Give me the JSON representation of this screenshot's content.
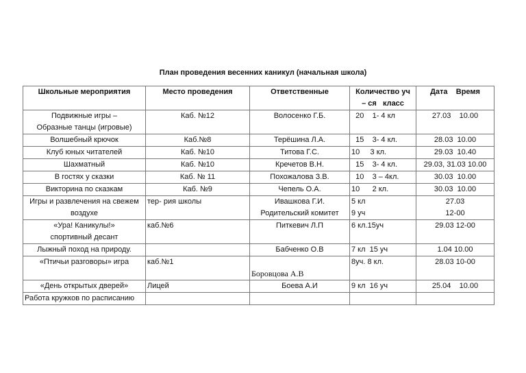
{
  "title": "План проведения весенних каникул (начальная школа)",
  "headers": [
    "Школьные мероприятия",
    "Место проведения",
    "Ответственные",
    "Количество уч\n– ся   класс",
    "Дата    Время"
  ],
  "rows": [
    [
      "Подвижные игры –\nОбразные танцы (игровые)",
      "Каб. №12",
      "Волосенко Г.Б.",
      "  20    1- 4 кл",
      "27.03    10.00"
    ],
    [
      "Волшебный крючок",
      "Каб.№8",
      "Терёшина Л.А.",
      "  15    3- 4 кл.",
      "28.03  10.00"
    ],
    [
      "Клуб юных читателей",
      "Каб. №10",
      "Титова Г.С.",
      "10     3 кл.",
      "29.03  10.40"
    ],
    [
      "Шахматный",
      "Каб. №10",
      "Кречетов В.Н.",
      "  15    3- 4 кл.",
      "29.03, 31.03 10.00"
    ],
    [
      "В гостях у сказки",
      "Каб. № 11",
      "Похожалова З.В.",
      "  10    3 – 4кл.",
      "30.03  10.00"
    ],
    [
      "Викторина по сказкам",
      "Каб. №9",
      "Чепель О.А.",
      "10      2 кл.",
      "30.03  10.00"
    ],
    [
      "Игры и развлечения на свежем\nвоздухе",
      "тер- рия школы",
      "Ивашкова Г.И.\nРодительский комитет",
      "5 кл\n9 уч",
      "27.03\n12-00"
    ],
    [
      "«Ура! Каникулы!»\nспортивный десант",
      "каб.№6",
      "Питкевич Л.П",
      "6 кл.15уч",
      "29.03 12-00"
    ],
    [
      "Лыжный поход на природу.",
      "",
      "Бабченко О.В",
      "7 кл  15 уч",
      "1.04 10.00"
    ],
    [
      "«Птичьи разговоры» игра",
      "каб.№1",
      "Боровцова А.В",
      "8уч. 8 кл.",
      "28.03 10-00"
    ],
    [
      "«День открытых дверей»",
      "Лицей",
      "Боева А.И",
      "9 кл  16 уч",
      "25.04    10.00"
    ],
    [
      "Работа кружков по расписанию",
      "",
      "",
      "",
      ""
    ]
  ]
}
